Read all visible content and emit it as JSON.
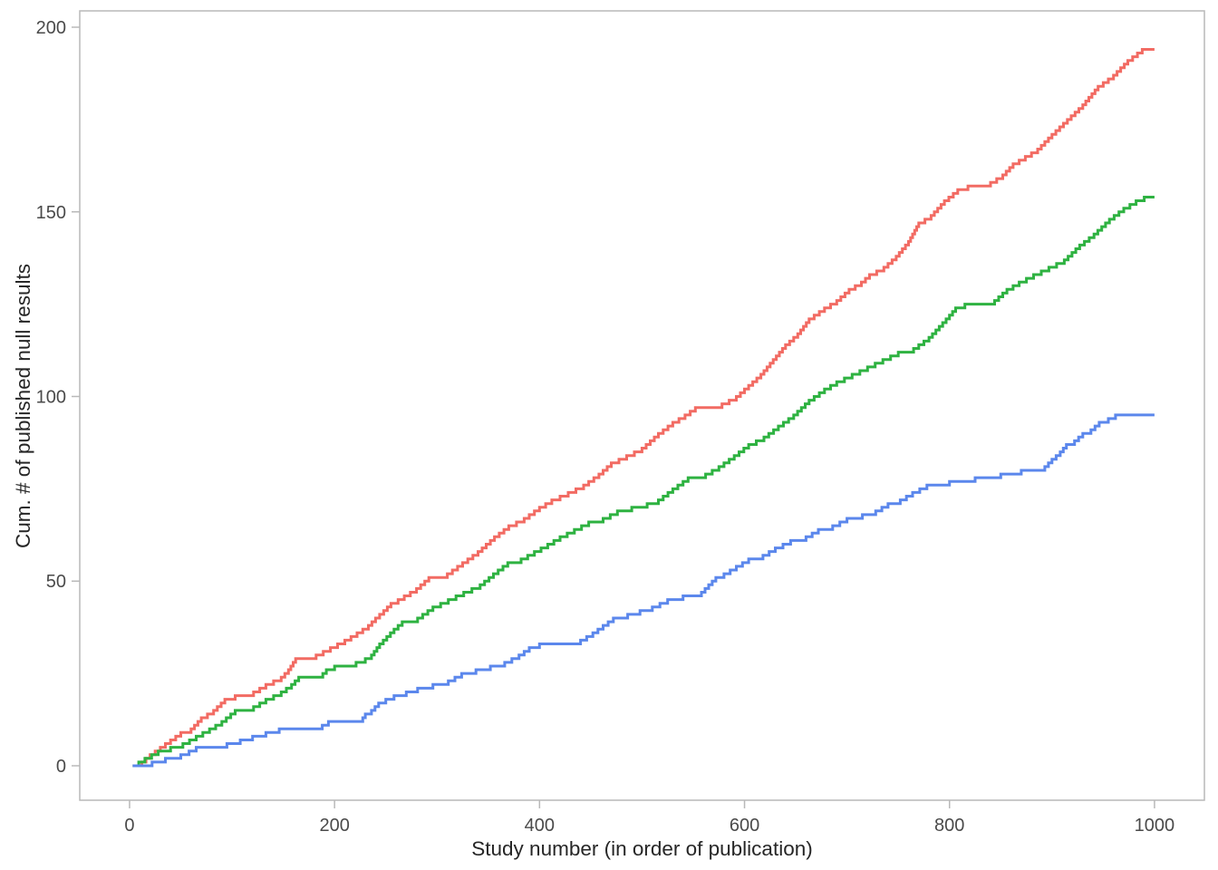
{
  "figure": {
    "background": "#ffffff",
    "frame_color": "#b9b9b9",
    "tick_label_color": "#4a4a4a",
    "axis_title_color": "#262626"
  },
  "chart_data": {
    "type": "line",
    "subtype": "cumulative-step",
    "title": "",
    "xlabel": "Study number (in order of publication)",
    "ylabel": "Cum. # of published null results",
    "xlim": [
      -48.6,
      1048.7
    ],
    "ylim": [
      -9.33,
      204.42
    ],
    "xticks": [
      0,
      200,
      400,
      600,
      800,
      1000
    ],
    "yticks": [
      0,
      50,
      100,
      150,
      200
    ],
    "grid": false,
    "legend": "none",
    "series": [
      {
        "name": "red",
        "color": "#f26b63",
        "final_value": 194,
        "points": [
          [
            3,
            0
          ],
          [
            12,
            1
          ],
          [
            20,
            3
          ],
          [
            30,
            5
          ],
          [
            40,
            7
          ],
          [
            50,
            9
          ],
          [
            60,
            10
          ],
          [
            70,
            13
          ],
          [
            82,
            15
          ],
          [
            93,
            18
          ],
          [
            103,
            19
          ],
          [
            121,
            20
          ],
          [
            133,
            22
          ],
          [
            148,
            24
          ],
          [
            155,
            26
          ],
          [
            162,
            29
          ],
          [
            182,
            30
          ],
          [
            196,
            32
          ],
          [
            210,
            34
          ],
          [
            222,
            36
          ],
          [
            233,
            38
          ],
          [
            240,
            40
          ],
          [
            248,
            42
          ],
          [
            255,
            44
          ],
          [
            262,
            45
          ],
          [
            280,
            48
          ],
          [
            292,
            51
          ],
          [
            310,
            52
          ],
          [
            325,
            55
          ],
          [
            340,
            58
          ],
          [
            356,
            62
          ],
          [
            370,
            65
          ],
          [
            385,
            67
          ],
          [
            400,
            70
          ],
          [
            412,
            72
          ],
          [
            428,
            74
          ],
          [
            443,
            76
          ],
          [
            458,
            79
          ],
          [
            470,
            82
          ],
          [
            485,
            84
          ],
          [
            500,
            86
          ],
          [
            516,
            90
          ],
          [
            530,
            93
          ],
          [
            542,
            95
          ],
          [
            552,
            97
          ],
          [
            578,
            98
          ],
          [
            592,
            100
          ],
          [
            604,
            103
          ],
          [
            616,
            106
          ],
          [
            628,
            110
          ],
          [
            640,
            114
          ],
          [
            652,
            117
          ],
          [
            663,
            121
          ],
          [
            678,
            124
          ],
          [
            690,
            126
          ],
          [
            702,
            129
          ],
          [
            714,
            131
          ],
          [
            722,
            133
          ],
          [
            736,
            135
          ],
          [
            748,
            138
          ],
          [
            760,
            142
          ],
          [
            770,
            147
          ],
          [
            782,
            149
          ],
          [
            795,
            153
          ],
          [
            808,
            156
          ],
          [
            818,
            157
          ],
          [
            840,
            158
          ],
          [
            852,
            160
          ],
          [
            862,
            163
          ],
          [
            874,
            165
          ],
          [
            886,
            167
          ],
          [
            900,
            171
          ],
          [
            915,
            175
          ],
          [
            930,
            179
          ],
          [
            945,
            184
          ],
          [
            960,
            187
          ],
          [
            974,
            191
          ],
          [
            988,
            194
          ],
          [
            1000,
            194
          ]
        ]
      },
      {
        "name": "green",
        "color": "#2eb241",
        "final_value": 154,
        "points": [
          [
            3,
            0
          ],
          [
            15,
            2
          ],
          [
            28,
            4
          ],
          [
            40,
            5
          ],
          [
            52,
            6
          ],
          [
            65,
            8
          ],
          [
            78,
            10
          ],
          [
            90,
            12
          ],
          [
            103,
            15
          ],
          [
            121,
            16
          ],
          [
            133,
            18
          ],
          [
            148,
            20
          ],
          [
            158,
            22
          ],
          [
            165,
            24
          ],
          [
            185,
            24
          ],
          [
            192,
            26
          ],
          [
            200,
            27
          ],
          [
            215,
            27
          ],
          [
            221,
            28
          ],
          [
            230,
            29
          ],
          [
            236,
            30
          ],
          [
            244,
            33
          ],
          [
            251,
            35
          ],
          [
            258,
            37
          ],
          [
            266,
            39
          ],
          [
            281,
            40
          ],
          [
            296,
            43
          ],
          [
            311,
            45
          ],
          [
            326,
            47
          ],
          [
            342,
            49
          ],
          [
            355,
            52
          ],
          [
            369,
            55
          ],
          [
            382,
            56
          ],
          [
            395,
            58
          ],
          [
            408,
            60
          ],
          [
            420,
            62
          ],
          [
            434,
            64
          ],
          [
            448,
            66
          ],
          [
            462,
            67
          ],
          [
            476,
            69
          ],
          [
            490,
            70
          ],
          [
            505,
            71
          ],
          [
            516,
            72
          ],
          [
            530,
            75
          ],
          [
            545,
            78
          ],
          [
            562,
            79
          ],
          [
            575,
            81
          ],
          [
            590,
            84
          ],
          [
            604,
            87
          ],
          [
            619,
            89
          ],
          [
            633,
            92
          ],
          [
            648,
            95
          ],
          [
            663,
            99
          ],
          [
            678,
            102
          ],
          [
            690,
            104
          ],
          [
            705,
            106
          ],
          [
            720,
            108
          ],
          [
            735,
            110
          ],
          [
            750,
            112
          ],
          [
            765,
            113
          ],
          [
            780,
            116
          ],
          [
            790,
            119
          ],
          [
            800,
            122
          ],
          [
            806,
            124
          ],
          [
            815,
            125
          ],
          [
            844,
            126
          ],
          [
            856,
            129
          ],
          [
            868,
            131
          ],
          [
            882,
            133
          ],
          [
            897,
            135
          ],
          [
            912,
            137
          ],
          [
            927,
            141
          ],
          [
            941,
            144
          ],
          [
            956,
            148
          ],
          [
            970,
            151
          ],
          [
            982,
            153
          ],
          [
            990,
            154
          ],
          [
            1000,
            154
          ]
        ]
      },
      {
        "name": "blue",
        "color": "#5b87ec",
        "final_value": 95,
        "points": [
          [
            3,
            0
          ],
          [
            22,
            1
          ],
          [
            35,
            2
          ],
          [
            50,
            3
          ],
          [
            58,
            4
          ],
          [
            65,
            5
          ],
          [
            95,
            6
          ],
          [
            108,
            7
          ],
          [
            120,
            8
          ],
          [
            133,
            9
          ],
          [
            146,
            10
          ],
          [
            180,
            10
          ],
          [
            188,
            11
          ],
          [
            194,
            12
          ],
          [
            225,
            12
          ],
          [
            230,
            14
          ],
          [
            236,
            15
          ],
          [
            243,
            17
          ],
          [
            250,
            18
          ],
          [
            258,
            19
          ],
          [
            270,
            20
          ],
          [
            281,
            21
          ],
          [
            296,
            22
          ],
          [
            311,
            23
          ],
          [
            324,
            25
          ],
          [
            338,
            26
          ],
          [
            352,
            27
          ],
          [
            366,
            28
          ],
          [
            380,
            30
          ],
          [
            390,
            32
          ],
          [
            400,
            33
          ],
          [
            440,
            34
          ],
          [
            452,
            36
          ],
          [
            462,
            38
          ],
          [
            472,
            40
          ],
          [
            486,
            41
          ],
          [
            498,
            42
          ],
          [
            510,
            43
          ],
          [
            525,
            45
          ],
          [
            540,
            46
          ],
          [
            558,
            47
          ],
          [
            565,
            49
          ],
          [
            572,
            51
          ],
          [
            580,
            52
          ],
          [
            592,
            54
          ],
          [
            604,
            56
          ],
          [
            618,
            57
          ],
          [
            630,
            59
          ],
          [
            645,
            61
          ],
          [
            660,
            62
          ],
          [
            672,
            64
          ],
          [
            686,
            65
          ],
          [
            700,
            67
          ],
          [
            715,
            68
          ],
          [
            728,
            69
          ],
          [
            740,
            71
          ],
          [
            752,
            72
          ],
          [
            764,
            74
          ],
          [
            778,
            76
          ],
          [
            800,
            77
          ],
          [
            825,
            78
          ],
          [
            850,
            79
          ],
          [
            870,
            80
          ],
          [
            893,
            81
          ],
          [
            900,
            83
          ],
          [
            908,
            85
          ],
          [
            914,
            87
          ],
          [
            922,
            88
          ],
          [
            930,
            90
          ],
          [
            938,
            91
          ],
          [
            946,
            93
          ],
          [
            955,
            94
          ],
          [
            962,
            95
          ],
          [
            1000,
            95
          ]
        ]
      }
    ]
  }
}
